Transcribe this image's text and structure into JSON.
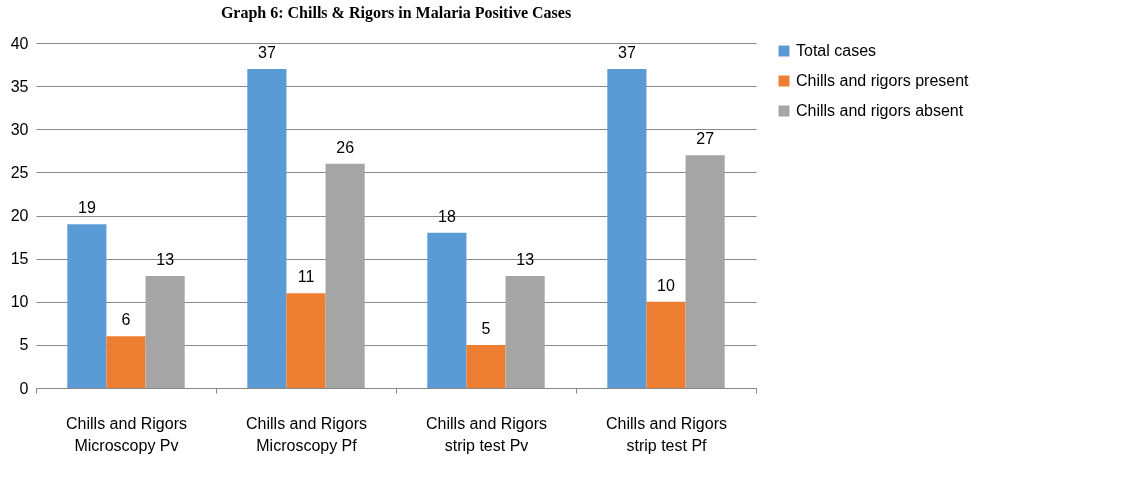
{
  "chart_data": {
    "type": "bar",
    "title": "Graph 6: Chills & Rigors in Malaria Positive Cases",
    "categories": [
      "Chills and Rigors Microscopy Pv",
      "Chills and Rigors Microscopy Pf",
      "Chills and Rigors strip test Pv",
      "Chills and Rigors strip test Pf"
    ],
    "series": [
      {
        "name": "Total cases",
        "color": "#5b9bd5",
        "values": [
          19,
          37,
          18,
          37
        ]
      },
      {
        "name": "Chills and rigors present",
        "color": "#ed7d31",
        "values": [
          6,
          11,
          5,
          10
        ]
      },
      {
        "name": "Chills and rigors absent",
        "color": "#a5a5a5",
        "values": [
          13,
          26,
          13,
          27
        ]
      }
    ],
    "ylim": [
      0,
      40
    ],
    "yticks": [
      0,
      5,
      10,
      15,
      20,
      25,
      30,
      35,
      40
    ],
    "grid": "y",
    "legend": "right",
    "data_labels": true
  }
}
